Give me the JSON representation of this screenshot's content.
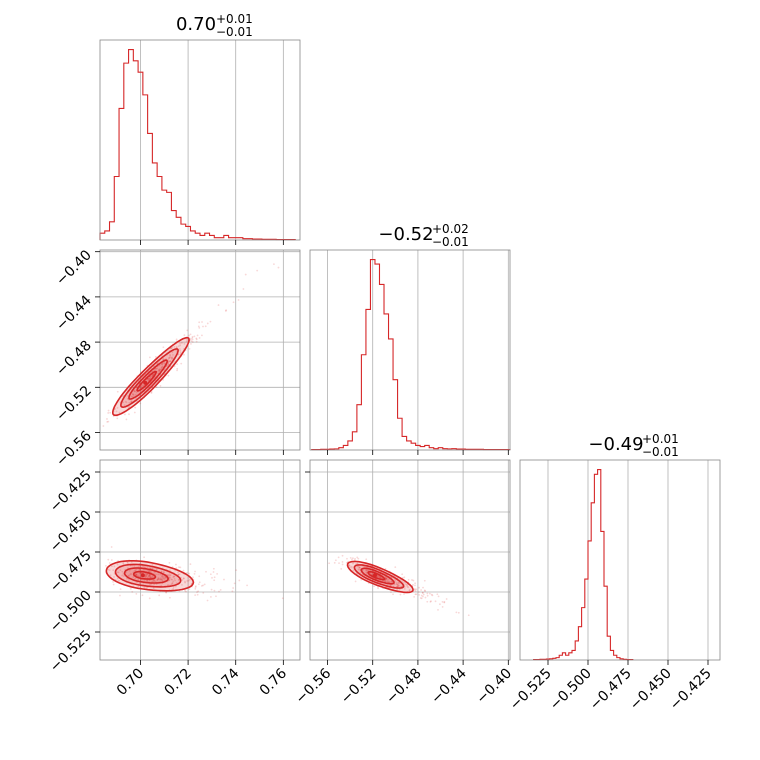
{
  "chart_data": {
    "type": "corner",
    "color": "#d62728",
    "grid": true,
    "titles": [
      {
        "value": "0.70",
        "plus": "+0.01",
        "minus": "−0.01"
      },
      {
        "value": "−0.52",
        "plus": "+0.02",
        "minus": "−0.01"
      },
      {
        "value": "−0.49",
        "plus": "+0.01",
        "minus": "−0.01"
      }
    ],
    "param_ranges": [
      [
        0.683,
        0.767
      ],
      [
        -0.5755,
        -0.3985
      ],
      [
        -0.5425,
        -0.4175
      ]
    ],
    "ticks": [
      {
        "values": [
          0.7,
          0.72,
          0.74,
          0.76
        ],
        "labels": [
          "0.70",
          "0.72",
          "0.74",
          "0.76"
        ]
      },
      {
        "values": [
          -0.56,
          -0.52,
          -0.48,
          -0.44,
          -0.4
        ],
        "labels": [
          "−0.56",
          "−0.52",
          "−0.48",
          "−0.44",
          "−0.40"
        ]
      },
      {
        "values": [
          -0.525,
          -0.5,
          -0.475,
          -0.45,
          -0.425
        ],
        "labels": [
          "−0.525",
          "−0.500",
          "−0.475",
          "−0.450",
          "−0.425"
        ]
      }
    ],
    "histograms": [
      {
        "param": 0,
        "x": [
          0.684,
          0.686,
          0.688,
          0.69,
          0.692,
          0.694,
          0.696,
          0.698,
          0.7,
          0.702,
          0.704,
          0.706,
          0.708,
          0.71,
          0.712,
          0.714,
          0.716,
          0.718,
          0.72,
          0.722,
          0.724,
          0.726,
          0.728,
          0.73,
          0.732,
          0.734,
          0.736,
          0.738,
          0.74,
          0.742,
          0.744,
          0.746,
          0.748,
          0.75,
          0.752,
          0.754,
          0.756,
          0.758,
          0.76,
          0.762,
          0.764
        ],
        "y": [
          3,
          4,
          8,
          28,
          58,
          78,
          84,
          79,
          74,
          64,
          47,
          34,
          28,
          22,
          21,
          13,
          10,
          7,
          6,
          4,
          3,
          2,
          3,
          2,
          1,
          1,
          2,
          1,
          1,
          1,
          0.6,
          0.6,
          0.4,
          0.4,
          0.3,
          0.3,
          0.3,
          0.2,
          0.2,
          0.2,
          0.2
        ]
      },
      {
        "param": 1,
        "x": [
          -0.572,
          -0.568,
          -0.564,
          -0.56,
          -0.556,
          -0.552,
          -0.548,
          -0.544,
          -0.54,
          -0.536,
          -0.532,
          -0.528,
          -0.524,
          -0.52,
          -0.516,
          -0.512,
          -0.508,
          -0.504,
          -0.5,
          -0.496,
          -0.492,
          -0.488,
          -0.484,
          -0.48,
          -0.476,
          -0.472,
          -0.468,
          -0.464,
          -0.46,
          -0.456,
          -0.452,
          -0.448,
          -0.444,
          -0.44,
          -0.436,
          -0.432,
          -0.428,
          -0.424,
          -0.42,
          -0.416,
          -0.412,
          -0.408,
          -0.404,
          -0.4
        ],
        "y": [
          0.2,
          0.2,
          0.3,
          0.3,
          0.4,
          0.5,
          1,
          2,
          4,
          8,
          20,
          42,
          62,
          84,
          82,
          73,
          60,
          49,
          31,
          14,
          6,
          4,
          3,
          2,
          1.5,
          2,
          1,
          0.6,
          1,
          0.6,
          0.5,
          0.6,
          0.4,
          0.4,
          0.3,
          0.3,
          0.3,
          0.3,
          0.2,
          0.2,
          0.2,
          0.2,
          0.2,
          0.2
        ]
      },
      {
        "param": 2,
        "x": [
          -0.533,
          -0.531,
          -0.529,
          -0.527,
          -0.525,
          -0.523,
          -0.521,
          -0.519,
          -0.517,
          -0.515,
          -0.513,
          -0.511,
          -0.509,
          -0.507,
          -0.505,
          -0.503,
          -0.501,
          -0.499,
          -0.497,
          -0.495,
          -0.493,
          -0.491,
          -0.489,
          -0.487,
          -0.485,
          -0.483,
          -0.481,
          -0.479,
          -0.477,
          -0.475,
          -0.473
        ],
        "y": [
          0.2,
          0.2,
          0.3,
          0.3,
          0.4,
          0.5,
          0.7,
          1,
          2,
          3,
          2,
          3,
          4,
          8,
          14,
          22,
          34,
          50,
          66,
          78,
          80,
          54,
          31,
          10,
          4,
          2,
          1,
          0.5,
          0.3,
          0.2,
          0.2
        ]
      }
    ],
    "density_2d": [
      {
        "x_param": 0,
        "y_param": 1,
        "mean": [
          0.702,
          -0.516
        ],
        "sd": [
          0.0075,
          0.016
        ],
        "rho": 0.93,
        "contour_levels": [
          0.5,
          1.0,
          1.5,
          2.0
        ],
        "n_scatter": 450
      },
      {
        "x_param": 0,
        "y_param": 2,
        "mean": [
          0.701,
          -0.4895
        ],
        "sd": [
          0.0085,
          0.0046
        ],
        "rho": -0.35,
        "contour_levels": [
          0.5,
          1.0,
          1.5,
          2.0
        ],
        "n_scatter": 420
      },
      {
        "x_param": 1,
        "y_param": 2,
        "mean": [
          -0.518,
          -0.4895
        ],
        "sd": [
          0.0135,
          0.0046
        ],
        "rho": -0.78,
        "contour_levels": [
          0.5,
          1.0,
          1.5,
          2.0
        ],
        "n_scatter": 420
      }
    ]
  }
}
